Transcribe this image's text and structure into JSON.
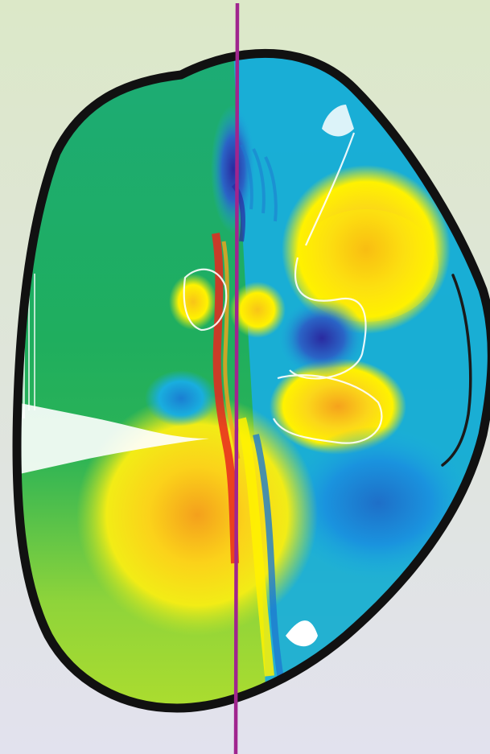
{
  "figure": {
    "palette": {
      "bg_top": "#dce8c8",
      "bg_bottom": "#e2e2ee",
      "outline": "#111111",
      "chord": "#a0258e",
      "antenna": "#1a1a1a",
      "white": "#ffffff",
      "green": "#1fae5e",
      "teal": "#22a8a4",
      "cyan": "#19aede",
      "blue": "#1e7bd0",
      "navy": "#2a2aa0",
      "yellow_green": "#b8e02a",
      "yellow": "#fff200",
      "orange": "#f5a21c",
      "red": "#e8281e"
    }
  }
}
